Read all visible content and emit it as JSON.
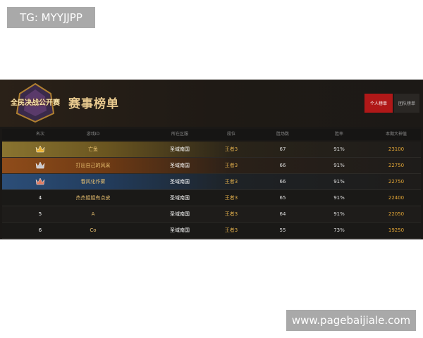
{
  "watermark_top": "TG: MYYJJPP",
  "watermark_bottom": "www.pagebaijiale.com",
  "header": {
    "logo": "全民决战公开赛",
    "title": "赛事榜单",
    "tabs": [
      "个人榜单",
      "团队榜单"
    ]
  },
  "table": {
    "columns": [
      "名次",
      "游戏ID",
      "所在区服",
      "段位",
      "胜场数",
      "胜率",
      "本期大神值"
    ],
    "rows": [
      [
        null,
        "亡鱼",
        "圣域南国",
        "王者3",
        67,
        "91%",
        23100
      ],
      [
        null,
        "打出自己的风采",
        "圣域南国",
        "王者3",
        66,
        "91%",
        22750
      ],
      [
        null,
        "春风化作雾",
        "圣域南国",
        "王者3",
        66,
        "91%",
        22750
      ],
      [
        4,
        "杰杰姐姐有点皮",
        "圣域南国",
        "王者3",
        65,
        "91%",
        22400
      ],
      [
        5,
        "A",
        "圣域南国",
        "王者3",
        64,
        "91%",
        22050
      ],
      [
        6,
        "Co",
        "圣域南国",
        "王者3",
        55,
        "73%",
        19250
      ]
    ]
  }
}
